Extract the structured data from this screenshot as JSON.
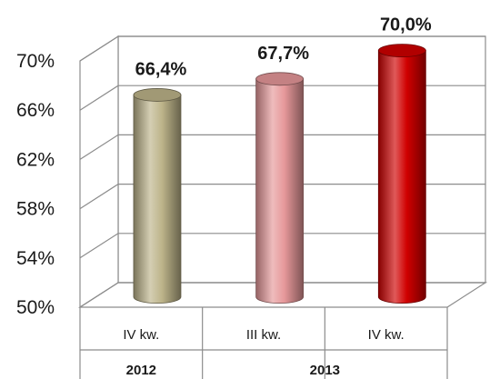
{
  "chart_data": {
    "type": "bar",
    "style": "3d-cylinder",
    "categories": [
      "IV kw.",
      "III kw.",
      "IV kw."
    ],
    "groups": [
      {
        "label": "2012",
        "span": 1
      },
      {
        "label": "2013",
        "span": 2
      }
    ],
    "values": [
      66.4,
      67.7,
      70.0
    ],
    "data_labels": [
      "66,4%",
      "67,7%",
      "70,0%"
    ],
    "bar_colors": [
      "#bdb48a",
      "#e6989a",
      "#d00000"
    ],
    "yticks": [
      "50%",
      "54%",
      "58%",
      "62%",
      "66%",
      "70%"
    ],
    "ylim": [
      50,
      70
    ],
    "grid": true,
    "legend": "none",
    "title": "",
    "xlabel": "",
    "ylabel": ""
  }
}
